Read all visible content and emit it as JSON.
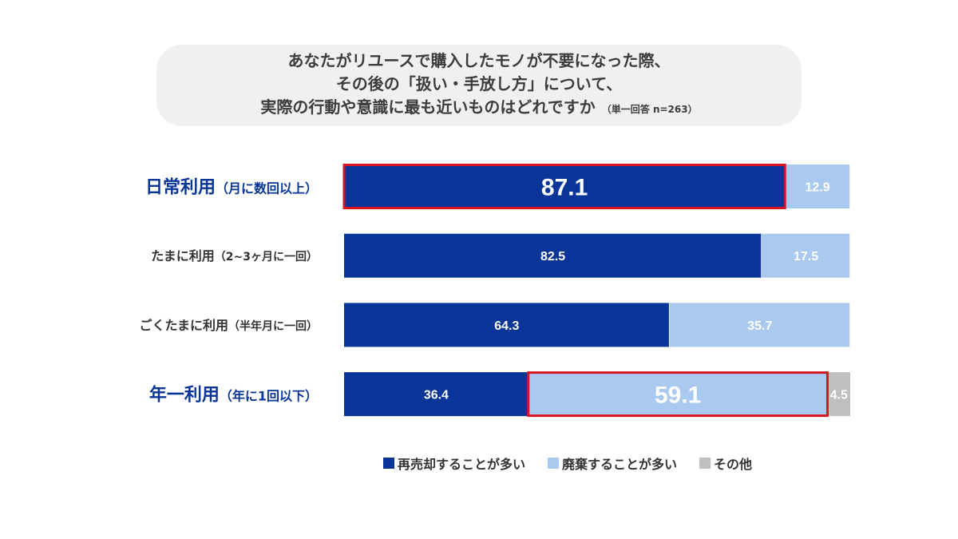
{
  "title": {
    "line1": "あなたがリユースで購入したモノが不要になった際、",
    "line2": "その後の「扱い・手放し方」について、",
    "line3": "実際の行動や意識に最も近いものはどれですか",
    "note": "（単一回答 n=263）"
  },
  "chart_data": {
    "type": "bar",
    "orientation": "horizontal",
    "stacked": true,
    "percent_stacked": true,
    "categories": [
      {
        "main": "日常利用",
        "sub": "（月に数回以上）",
        "emphasis": true
      },
      {
        "main": "たまに利用",
        "sub": "（2~3ヶ月に一回）",
        "emphasis": false
      },
      {
        "main": "ごくたまに利用",
        "sub": "（半年月に一回）",
        "emphasis": false
      },
      {
        "main": "年一利用",
        "sub": "（年に1回以下）",
        "emphasis": true
      }
    ],
    "series": [
      {
        "name": "再売却することが多い",
        "color": "#0a3598",
        "values": [
          87.1,
          82.5,
          64.3,
          36.4
        ]
      },
      {
        "name": "廃棄することが多い",
        "color": "#a9c9ee",
        "values": [
          12.9,
          17.5,
          35.7,
          59.1
        ]
      },
      {
        "name": "その他",
        "color": "#bfbfbf",
        "values": [
          0,
          0,
          0,
          4.5
        ]
      }
    ],
    "data_labels": [
      [
        "87.1",
        "12.9",
        ""
      ],
      [
        "82.5",
        "17.5",
        ""
      ],
      [
        "64.3",
        "35.7",
        ""
      ],
      [
        "36.4",
        "59.1",
        "4.5"
      ]
    ],
    "highlights": [
      {
        "category": 0,
        "series": 0,
        "color": "#d7141f"
      },
      {
        "category": 3,
        "series": 1,
        "color": "#d7141f"
      }
    ],
    "legend_position": "bottom",
    "grid": false
  }
}
